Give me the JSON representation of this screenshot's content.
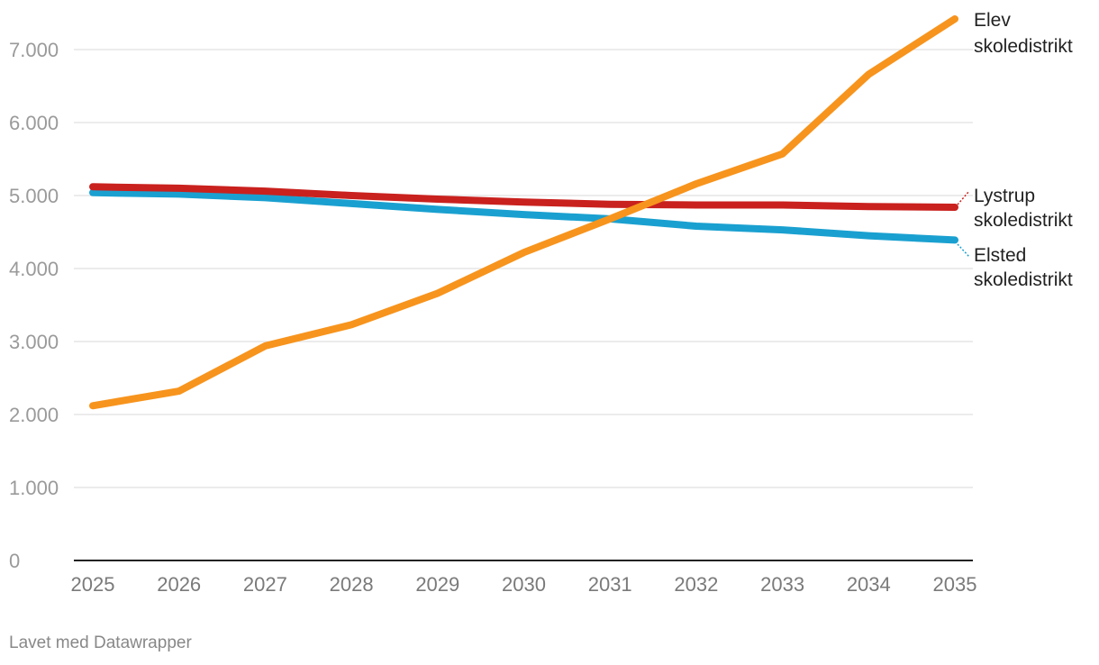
{
  "chart_data": {
    "type": "line",
    "x": [
      "2025",
      "2026",
      "2027",
      "2028",
      "2029",
      "2030",
      "2031",
      "2032",
      "2033",
      "2034",
      "2035"
    ],
    "ylim": [
      0,
      7000
    ],
    "yticks": [
      0,
      1000,
      2000,
      3000,
      4000,
      5000,
      6000,
      7000
    ],
    "ytick_labels": [
      "0",
      "1.000",
      "2.000",
      "3.000",
      "4.000",
      "5.000",
      "6.000",
      "7.000"
    ],
    "grid": true,
    "legend": "inline labels at right end of lines",
    "series": [
      {
        "name": "Elev skoledistrikt",
        "label_lines": [
          "Elev",
          "skoledistrikt"
        ],
        "color": "#f7941d",
        "values": [
          2120,
          2320,
          2940,
          3230,
          3660,
          4220,
          4680,
          5160,
          5570,
          6660,
          7420
        ]
      },
      {
        "name": "Lystrup skoledistrikt",
        "label_lines": [
          "Lystrup",
          "skoledistrikt"
        ],
        "color": "#c9211e",
        "values": [
          5120,
          5100,
          5060,
          5000,
          4950,
          4910,
          4880,
          4870,
          4870,
          4850,
          4840
        ]
      },
      {
        "name": "Elsted skoledistrikt",
        "label_lines": [
          "Elsted",
          "skoledistrikt"
        ],
        "color": "#1aa0d0",
        "values": [
          5040,
          5020,
          4970,
          4890,
          4810,
          4740,
          4680,
          4580,
          4530,
          4450,
          4390
        ]
      }
    ]
  },
  "footer": {
    "credit": "Lavet med Datawrapper"
  }
}
